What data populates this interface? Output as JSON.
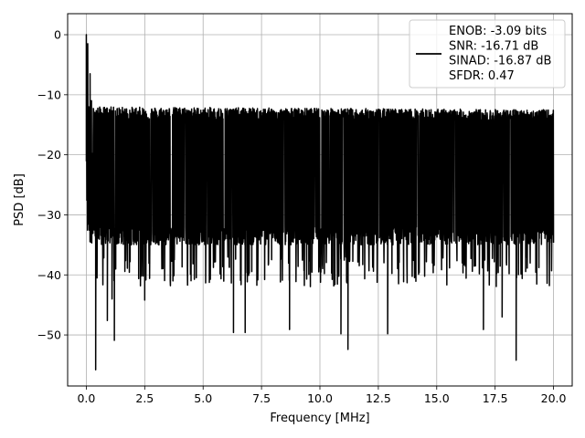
{
  "chart_data": {
    "type": "line",
    "title": "",
    "xlabel": "Frequency [MHz]",
    "ylabel": "PSD [dB]",
    "xlim": [
      -0.8,
      20.8
    ],
    "ylim": [
      -58.5,
      3.5
    ],
    "xticks": [
      0.0,
      2.5,
      5.0,
      7.5,
      10.0,
      12.5,
      15.0,
      17.5,
      20.0
    ],
    "xtick_labels": [
      "0.0",
      "2.5",
      "5.0",
      "7.5",
      "10.0",
      "12.5",
      "15.0",
      "17.5",
      "20.0"
    ],
    "yticks": [
      0,
      -10,
      -20,
      -30,
      -40,
      -50
    ],
    "ytick_labels": [
      "0",
      "−10",
      "−20",
      "−30",
      "−40",
      "−50"
    ],
    "grid": true,
    "legend_position": "top-right",
    "series": [
      {
        "name": "ENOB: -3.09 bits\nSNR: -16.71 dB\nSINAD: -16.87 dB\nSFDR: 0.47",
        "color": "#000000",
        "noise_floor_db": -24,
        "noise_band_db": [
          -35,
          -14
        ],
        "x_range": [
          0.0,
          20.0
        ],
        "peaks": [
          {
            "x": 0.0,
            "y": 0.0
          },
          {
            "x": 0.03,
            "y": -22.5
          },
          {
            "x": 0.06,
            "y": -1.5
          },
          {
            "x": 0.1,
            "y": -12.0
          },
          {
            "x": 0.16,
            "y": -6.5
          },
          {
            "x": 0.22,
            "y": -11.0
          }
        ],
        "dips": [
          {
            "x": 0.4,
            "y": -55.8
          },
          {
            "x": 0.9,
            "y": -47.6
          },
          {
            "x": 1.2,
            "y": -50.9
          },
          {
            "x": 1.1,
            "y": -44.0
          },
          {
            "x": 2.5,
            "y": -44.2
          },
          {
            "x": 6.3,
            "y": -49.6
          },
          {
            "x": 6.8,
            "y": -49.6
          },
          {
            "x": 8.7,
            "y": -49.1
          },
          {
            "x": 11.2,
            "y": -52.4
          },
          {
            "x": 10.9,
            "y": -49.8
          },
          {
            "x": 12.9,
            "y": -49.8
          },
          {
            "x": 17.0,
            "y": -49.1
          },
          {
            "x": 17.8,
            "y": -47.0
          },
          {
            "x": 18.4,
            "y": -54.2
          }
        ]
      }
    ]
  }
}
